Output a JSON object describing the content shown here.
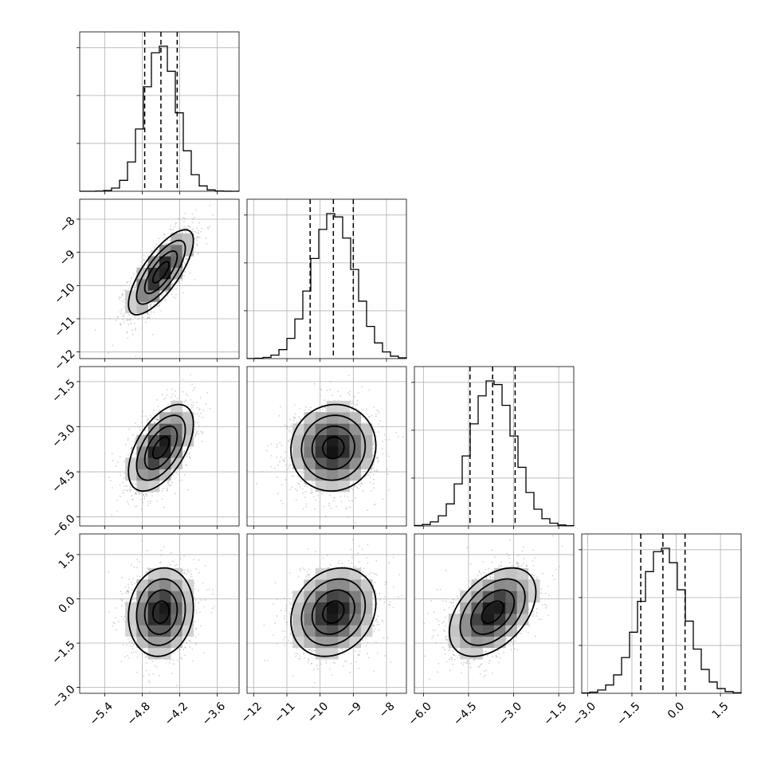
{
  "chart_data": {
    "type": "corner",
    "title": "",
    "parameters": [
      {
        "index": 0,
        "range": [
          -5.8,
          -3.25
        ],
        "ticks": [
          -5.4,
          -4.8,
          -4.2,
          -3.6
        ],
        "tick_labels": [
          "−5.4",
          "−4.8",
          "−4.2",
          "−3.6"
        ],
        "mean": -4.5,
        "sd": 0.26,
        "quantiles": [
          -4.76,
          -4.5,
          -4.24
        ]
      },
      {
        "index": 1,
        "range": [
          -12.2,
          -7.4
        ],
        "ticks": [
          -12,
          -11,
          -10,
          -9,
          -8
        ],
        "tick_labels": [
          "−12",
          "−11",
          "−10",
          "−9",
          "−8"
        ],
        "mean": -9.6,
        "sd": 0.64,
        "quantiles": [
          -10.3,
          -9.6,
          -9.0
        ]
      },
      {
        "index": 2,
        "range": [
          -6.3,
          -1.0
        ],
        "ticks": [
          -6.0,
          -4.5,
          -3.0,
          -1.5
        ],
        "tick_labels": [
          "−6.0",
          "−4.5",
          "−3.0",
          "−1.5"
        ],
        "mean": -3.7,
        "sd": 0.72,
        "quantiles": [
          -4.45,
          -3.7,
          -2.95
        ]
      },
      {
        "index": 3,
        "range": [
          -3.2,
          2.2
        ],
        "ticks": [
          -3.0,
          -1.5,
          0.0,
          1.5
        ],
        "tick_labels": [
          "−3.0",
          "−1.5",
          "0.0",
          "1.5"
        ],
        "mean": -0.45,
        "sd": 0.75,
        "quantiles": [
          -1.2,
          -0.45,
          0.3
        ]
      }
    ],
    "correlations": [
      [
        1.0,
        0.75,
        0.55,
        0.1
      ],
      [
        0.75,
        1.0,
        0.05,
        0.2
      ],
      [
        0.55,
        0.05,
        1.0,
        0.45
      ],
      [
        0.1,
        0.2,
        0.45,
        1.0
      ]
    ],
    "contour_levels_sigma": [
      0.5,
      1.0,
      1.5,
      2.0
    ],
    "histogram_bins": 20,
    "grid": true,
    "legend": "none"
  }
}
